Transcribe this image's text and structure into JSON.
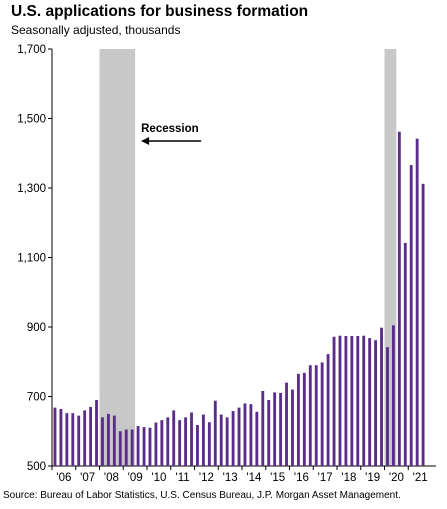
{
  "chart_data": {
    "type": "bar",
    "title": "U.S. applications for business formation",
    "subtitle": "Seasonally adjusted, thousands",
    "source": "Source: Bureau of Labor Statistics, U.S. Census Bureau, J.P. Morgan Asset Management.",
    "ylim": [
      500,
      1700
    ],
    "yticks": [
      500,
      700,
      900,
      "1,100",
      "1,300",
      "1,500",
      "1,700"
    ],
    "xticks": [
      "'06",
      "'07",
      "'08",
      "'09",
      "'10",
      "'11",
      "'12",
      "'13",
      "'14",
      "'15",
      "'16",
      "'17",
      "'18",
      "'19",
      "'20",
      "'21"
    ],
    "x_start": "2006Q1",
    "frequency": "quarterly",
    "recessions": [
      {
        "label": "Recession",
        "start": "2008Q1",
        "end": "2009Q2"
      },
      {
        "start": "2020Q1",
        "end": "2020Q2"
      }
    ],
    "annotation": "Recession",
    "series": [
      {
        "color": "#5b2d8a",
        "values": [
          668,
          664,
          652,
          652,
          645,
          660,
          670,
          690,
          640,
          650,
          645,
          600,
          605,
          605,
          615,
          612,
          610,
          625,
          632,
          640,
          660,
          632,
          640,
          654,
          618,
          648,
          626,
          688,
          648,
          640,
          658,
          668,
          680,
          678,
          656,
          716,
          690,
          712,
          710,
          740,
          720,
          765,
          768,
          790,
          790,
          798,
          822,
          872,
          875,
          874,
          874,
          874,
          875,
          868,
          862,
          898,
          842,
          905,
          1462,
          1142,
          1366,
          1442,
          1312
        ]
      }
    ]
  }
}
